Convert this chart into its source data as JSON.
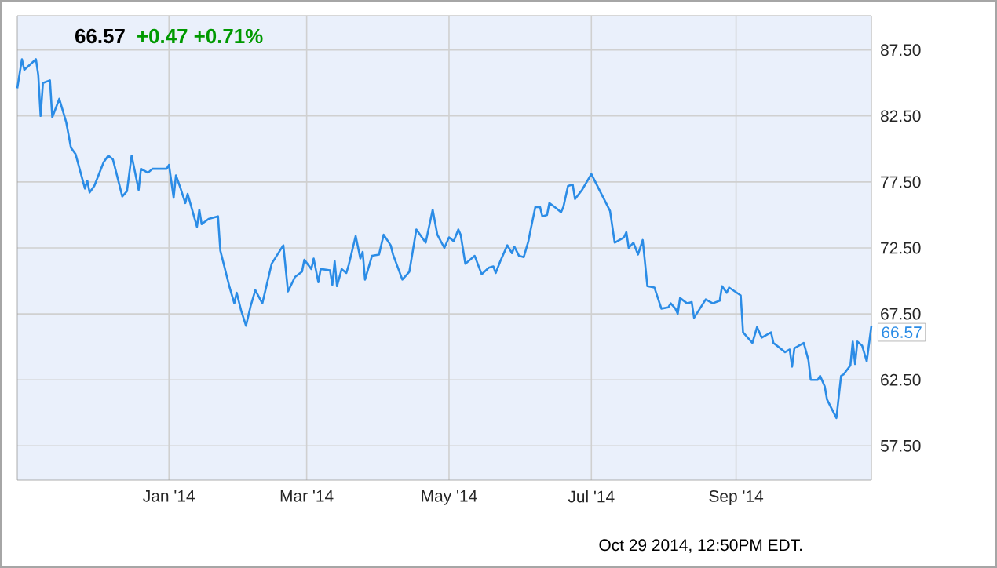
{
  "chart_data": {
    "type": "line",
    "title": "66.57",
    "subtitle": "+0.47 +0.71%",
    "x": [
      "2013-10-28",
      "2013-10-30",
      "2013-10-31",
      "2013-11-05",
      "2013-11-06",
      "2013-11-07",
      "2013-11-08",
      "2013-11-11",
      "2013-11-12",
      "2013-11-15",
      "2013-11-18",
      "2013-11-20",
      "2013-11-22",
      "2013-11-26",
      "2013-11-27",
      "2013-11-28",
      "2013-11-30",
      "2013-12-04",
      "2013-12-06",
      "2013-12-08",
      "2013-12-12",
      "2013-12-14",
      "2013-12-16",
      "2013-12-19",
      "2013-12-20",
      "2013-12-23",
      "2013-12-25",
      "2013-12-31",
      "2014-01-01",
      "2014-01-03",
      "2014-01-04",
      "2014-01-06",
      "2014-01-08",
      "2014-01-09",
      "2014-01-13",
      "2014-01-14",
      "2014-01-15",
      "2014-01-18",
      "2014-01-22",
      "2014-01-23",
      "2014-01-27",
      "2014-01-29",
      "2014-01-30",
      "2014-02-01",
      "2014-02-03",
      "2014-02-05",
      "2014-02-07",
      "2014-02-10",
      "2014-02-14",
      "2014-02-19",
      "2014-02-21",
      "2014-02-24",
      "2014-02-27",
      "2014-02-28",
      "2014-03-03",
      "2014-03-04",
      "2014-03-06",
      "2014-03-07",
      "2014-03-11",
      "2014-03-12",
      "2014-03-13",
      "2014-03-14",
      "2014-03-16",
      "2014-03-18",
      "2014-03-19",
      "2014-03-22",
      "2014-03-24",
      "2014-03-25",
      "2014-03-26",
      "2014-03-29",
      "2014-04-01",
      "2014-04-03",
      "2014-04-06",
      "2014-04-07",
      "2014-04-11",
      "2014-04-14",
      "2014-04-17",
      "2014-04-21",
      "2014-04-24",
      "2014-04-26",
      "2014-04-29",
      "2014-05-01",
      "2014-05-03",
      "2014-05-05",
      "2014-05-06",
      "2014-05-08",
      "2014-05-12",
      "2014-05-15",
      "2014-05-18",
      "2014-05-20",
      "2014-05-21",
      "2014-05-23",
      "2014-05-26",
      "2014-05-28",
      "2014-05-29",
      "2014-05-31",
      "2014-06-02",
      "2014-06-04",
      "2014-06-05",
      "2014-06-07",
      "2014-06-09",
      "2014-06-10",
      "2014-06-12",
      "2014-06-13",
      "2014-06-16",
      "2014-06-18",
      "2014-06-19",
      "2014-06-21",
      "2014-06-23",
      "2014-06-24",
      "2014-06-27",
      "2014-07-01",
      "2014-07-09",
      "2014-07-11",
      "2014-07-15",
      "2014-07-16",
      "2014-07-17",
      "2014-07-19",
      "2014-07-21",
      "2014-07-23",
      "2014-07-25",
      "2014-07-28",
      "2014-07-31",
      "2014-08-03",
      "2014-08-04",
      "2014-08-06",
      "2014-08-07",
      "2014-08-08",
      "2014-08-11",
      "2014-08-13",
      "2014-08-14",
      "2014-08-19",
      "2014-08-22",
      "2014-08-25",
      "2014-08-26",
      "2014-08-28",
      "2014-08-29",
      "2014-09-03",
      "2014-09-04",
      "2014-09-08",
      "2014-09-10",
      "2014-09-12",
      "2014-09-16",
      "2014-09-17",
      "2014-09-22",
      "2014-09-24",
      "2014-09-25",
      "2014-09-26",
      "2014-09-30",
      "2014-10-02",
      "2014-10-03",
      "2014-10-06",
      "2014-10-07",
      "2014-10-09",
      "2014-10-10",
      "2014-10-14",
      "2014-10-16",
      "2014-10-17",
      "2014-10-20",
      "2014-10-21",
      "2014-10-22",
      "2014-10-23",
      "2014-10-25",
      "2014-10-27",
      "2014-10-29"
    ],
    "series": [
      {
        "color": "#2b8ce6",
        "values": [
          84.6,
          86.8,
          86.0,
          86.8,
          85.6,
          82.5,
          85.0,
          85.2,
          82.4,
          83.8,
          82.0,
          80.1,
          79.6,
          77.0,
          77.6,
          76.7,
          77.2,
          79.0,
          79.5,
          79.2,
          76.4,
          76.8,
          79.5,
          76.9,
          78.5,
          78.2,
          78.5,
          78.5,
          78.8,
          76.3,
          78.0,
          77.0,
          75.9,
          76.6,
          74.1,
          75.4,
          74.3,
          74.7,
          74.9,
          72.3,
          69.5,
          68.3,
          69.1,
          67.7,
          66.6,
          68.1,
          69.3,
          68.3,
          71.3,
          72.7,
          69.2,
          70.3,
          70.7,
          71.6,
          70.9,
          71.7,
          69.9,
          70.9,
          70.8,
          69.7,
          71.5,
          69.6,
          70.9,
          70.6,
          71.2,
          73.4,
          71.7,
          72.2,
          70.1,
          71.9,
          72.0,
          73.5,
          72.7,
          72.0,
          70.1,
          70.7,
          73.9,
          72.9,
          75.4,
          73.5,
          72.5,
          73.3,
          73.0,
          73.9,
          73.5,
          71.3,
          71.9,
          70.5,
          71.0,
          71.1,
          70.6,
          71.5,
          72.7,
          72.1,
          72.6,
          71.9,
          71.8,
          73.0,
          73.9,
          75.6,
          75.6,
          74.9,
          75.0,
          75.9,
          75.5,
          75.2,
          75.6,
          77.2,
          77.3,
          76.2,
          76.9,
          78.1,
          75.3,
          72.9,
          73.3,
          73.7,
          72.5,
          72.9,
          72.0,
          73.1,
          69.6,
          69.5,
          67.9,
          68.0,
          68.3,
          67.9,
          67.5,
          68.7,
          68.3,
          68.4,
          67.2,
          68.6,
          68.3,
          68.5,
          69.6,
          69.1,
          69.5,
          68.9,
          66.1,
          65.3,
          66.5,
          65.7,
          66.1,
          65.3,
          64.6,
          64.8,
          63.5,
          64.9,
          65.3,
          64.0,
          62.5,
          62.5,
          62.8,
          62.0,
          61.0,
          59.6,
          62.8,
          62.9,
          63.6,
          65.4,
          63.7,
          65.4,
          65.1,
          63.9,
          66.6
        ]
      }
    ],
    "xlim": [
      "2013-10-28",
      "2014-10-29"
    ],
    "xticks": [
      {
        "value": "2014-01-01",
        "label": "Jan '14"
      },
      {
        "value": "2014-03-01",
        "label": "Mar '14"
      },
      {
        "value": "2014-05-01",
        "label": "May '14"
      },
      {
        "value": "2014-07-01",
        "label": "Jul '14"
      },
      {
        "value": "2014-09-01",
        "label": "Sep '14"
      }
    ],
    "ylim": [
      54.9,
      90.1
    ],
    "yticks": [
      {
        "value": 57.5,
        "label": "57.50"
      },
      {
        "value": 62.5,
        "label": "62.50"
      },
      {
        "value": 67.5,
        "label": "67.50"
      },
      {
        "value": 72.5,
        "label": "72.50"
      },
      {
        "value": 77.5,
        "label": "77.50"
      },
      {
        "value": 82.5,
        "label": "82.50"
      },
      {
        "value": 87.5,
        "label": "87.50"
      }
    ],
    "grid": true,
    "annotations": [
      {
        "text": "66.57",
        "x": "2014-10-29",
        "y": 66.57
      },
      "Oct 29 2014, 12:50PM EDT."
    ]
  }
}
